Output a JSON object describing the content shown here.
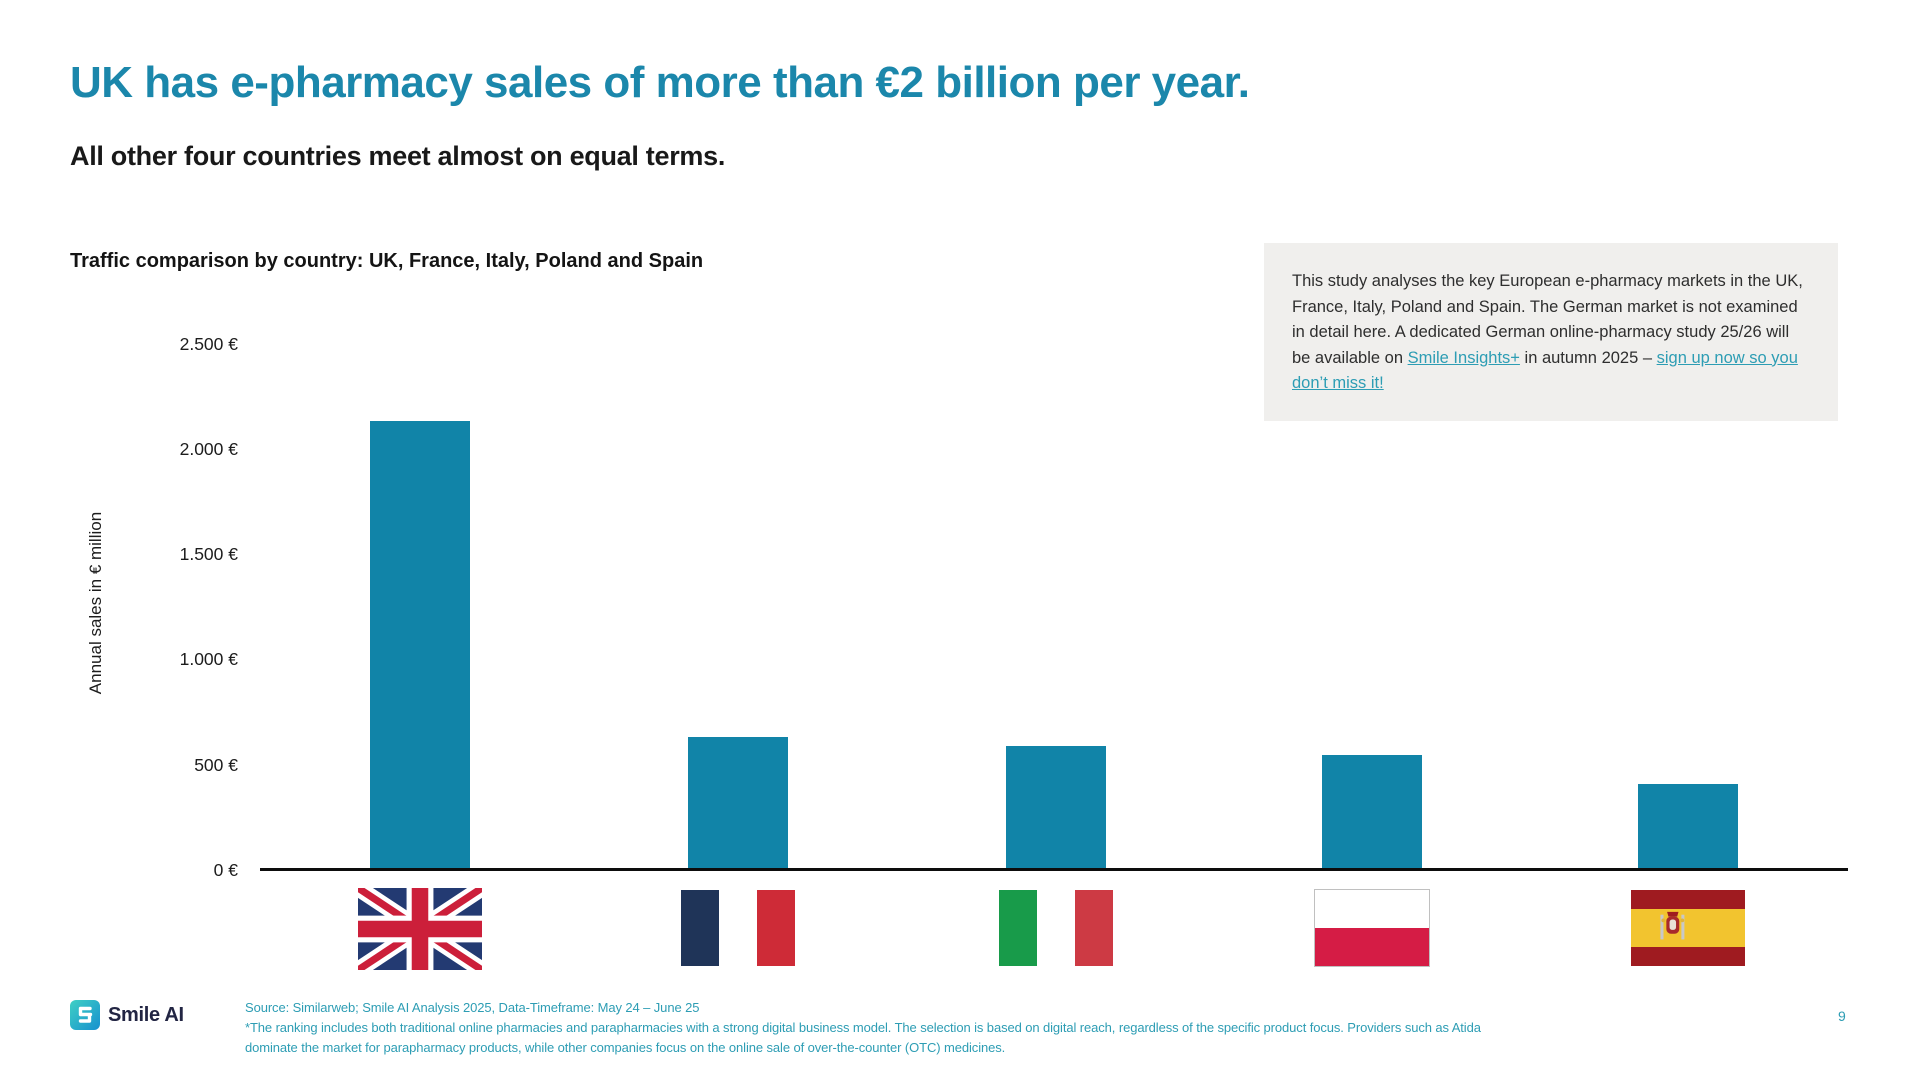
{
  "slide": {
    "title": "UK has e-pharmacy sales of more than €2 billion per year.",
    "subtitle": "All other four countries meet almost on equal terms.",
    "page_number": "9"
  },
  "note_box": {
    "text_before": "This study analyses the key European e-pharmacy markets in the UK, France, Italy, Poland and Spain. The German market is not examined in detail here. A dedicated German online-pharmacy study 25/26 will be available on ",
    "link1": "Smile Insights+",
    "text_middle": " in autumn 2025 – ",
    "link2": "sign up now so you don’t miss it!"
  },
  "chart_data": {
    "type": "bar",
    "title": "Traffic comparison by country: UK, France, Italy, Poland and Spain",
    "xlabel": "",
    "ylabel": "Annual sales in € million",
    "categories": [
      "UK",
      "France",
      "Italy",
      "Poland",
      "Spain"
    ],
    "values": [
      2130,
      630,
      590,
      545,
      410
    ],
    "ylim": [
      0,
      2500
    ],
    "ytick_interval": 500,
    "ytick_labels": [
      "0 €",
      "500 €",
      "1.000 €",
      "1.500 €",
      "2.000 €",
      "2.500 €"
    ],
    "bar_color": "#1184a8",
    "grid": false,
    "legend": "none",
    "category_icons": [
      "uk-flag",
      "france-flag",
      "italy-flag",
      "poland-flag",
      "spain-flag"
    ]
  },
  "footer": {
    "logo_text": "Smile AI",
    "source_line": "Source: Similarweb; Smile AI Analysis 2025, Data-Timeframe: May 24 – June 25",
    "note_line": "*The ranking includes both traditional online pharmacies and parapharmacies with a strong digital business model. The selection is based on digital reach, regardless of the specific product focus. Providers such as Atida dominate the market for parapharmacy products, while other companies focus on the online sale of over-the-counter (OTC) medicines."
  },
  "colors": {
    "title_teal": "#1b87ab",
    "bar_teal": "#1184a8",
    "footer_teal": "#2d9db4",
    "note_box_bg": "#f0efed",
    "text_dark": "#191919"
  }
}
